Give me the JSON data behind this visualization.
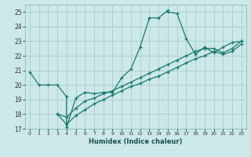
{
  "xlabel": "Humidex (Indice chaleur)",
  "ylabel": "",
  "background_color": "#cce8e8",
  "grid_color": "#aacccc",
  "line_color": "#1a7a6e",
  "xlim": [
    -0.5,
    23.5
  ],
  "ylim": [
    17,
    25.5
  ],
  "xticks": [
    0,
    1,
    2,
    3,
    4,
    5,
    6,
    7,
    8,
    9,
    10,
    11,
    12,
    13,
    14,
    15,
    16,
    17,
    18,
    19,
    20,
    21,
    22,
    23
  ],
  "yticks": [
    17,
    18,
    19,
    20,
    21,
    22,
    23,
    24,
    25
  ],
  "series": [
    {
      "x": [
        0,
        1,
        2,
        3,
        4,
        4,
        5,
        6,
        7,
        8,
        9,
        10,
        11,
        12,
        13,
        14,
        15,
        15,
        16,
        17,
        18,
        19,
        20,
        21,
        22,
        23
      ],
      "y": [
        20.9,
        20.0,
        20.0,
        20.0,
        19.2,
        17.1,
        19.1,
        19.5,
        19.4,
        19.5,
        19.5,
        20.5,
        21.1,
        22.6,
        24.6,
        24.6,
        25.1,
        25.0,
        24.9,
        23.2,
        22.1,
        22.6,
        22.2,
        22.6,
        22.9,
        23.0
      ]
    },
    {
      "x": [
        3,
        4,
        5,
        6,
        7,
        8,
        9,
        10,
        11,
        12,
        13,
        14,
        15,
        16,
        17,
        18,
        19,
        20,
        21,
        22,
        23
      ],
      "y": [
        18.0,
        17.8,
        18.4,
        18.9,
        19.1,
        19.4,
        19.6,
        19.9,
        20.2,
        20.5,
        20.8,
        21.1,
        21.4,
        21.7,
        22.0,
        22.3,
        22.5,
        22.5,
        22.2,
        22.5,
        23.0
      ]
    },
    {
      "x": [
        3,
        4,
        5,
        6,
        7,
        8,
        9,
        10,
        11,
        12,
        13,
        14,
        15,
        16,
        17,
        18,
        19,
        20,
        21,
        22,
        23
      ],
      "y": [
        18.0,
        17.3,
        17.9,
        18.3,
        18.7,
        19.0,
        19.3,
        19.6,
        19.9,
        20.1,
        20.4,
        20.6,
        20.9,
        21.2,
        21.5,
        21.8,
        22.0,
        22.3,
        22.1,
        22.3,
        22.8
      ]
    }
  ]
}
